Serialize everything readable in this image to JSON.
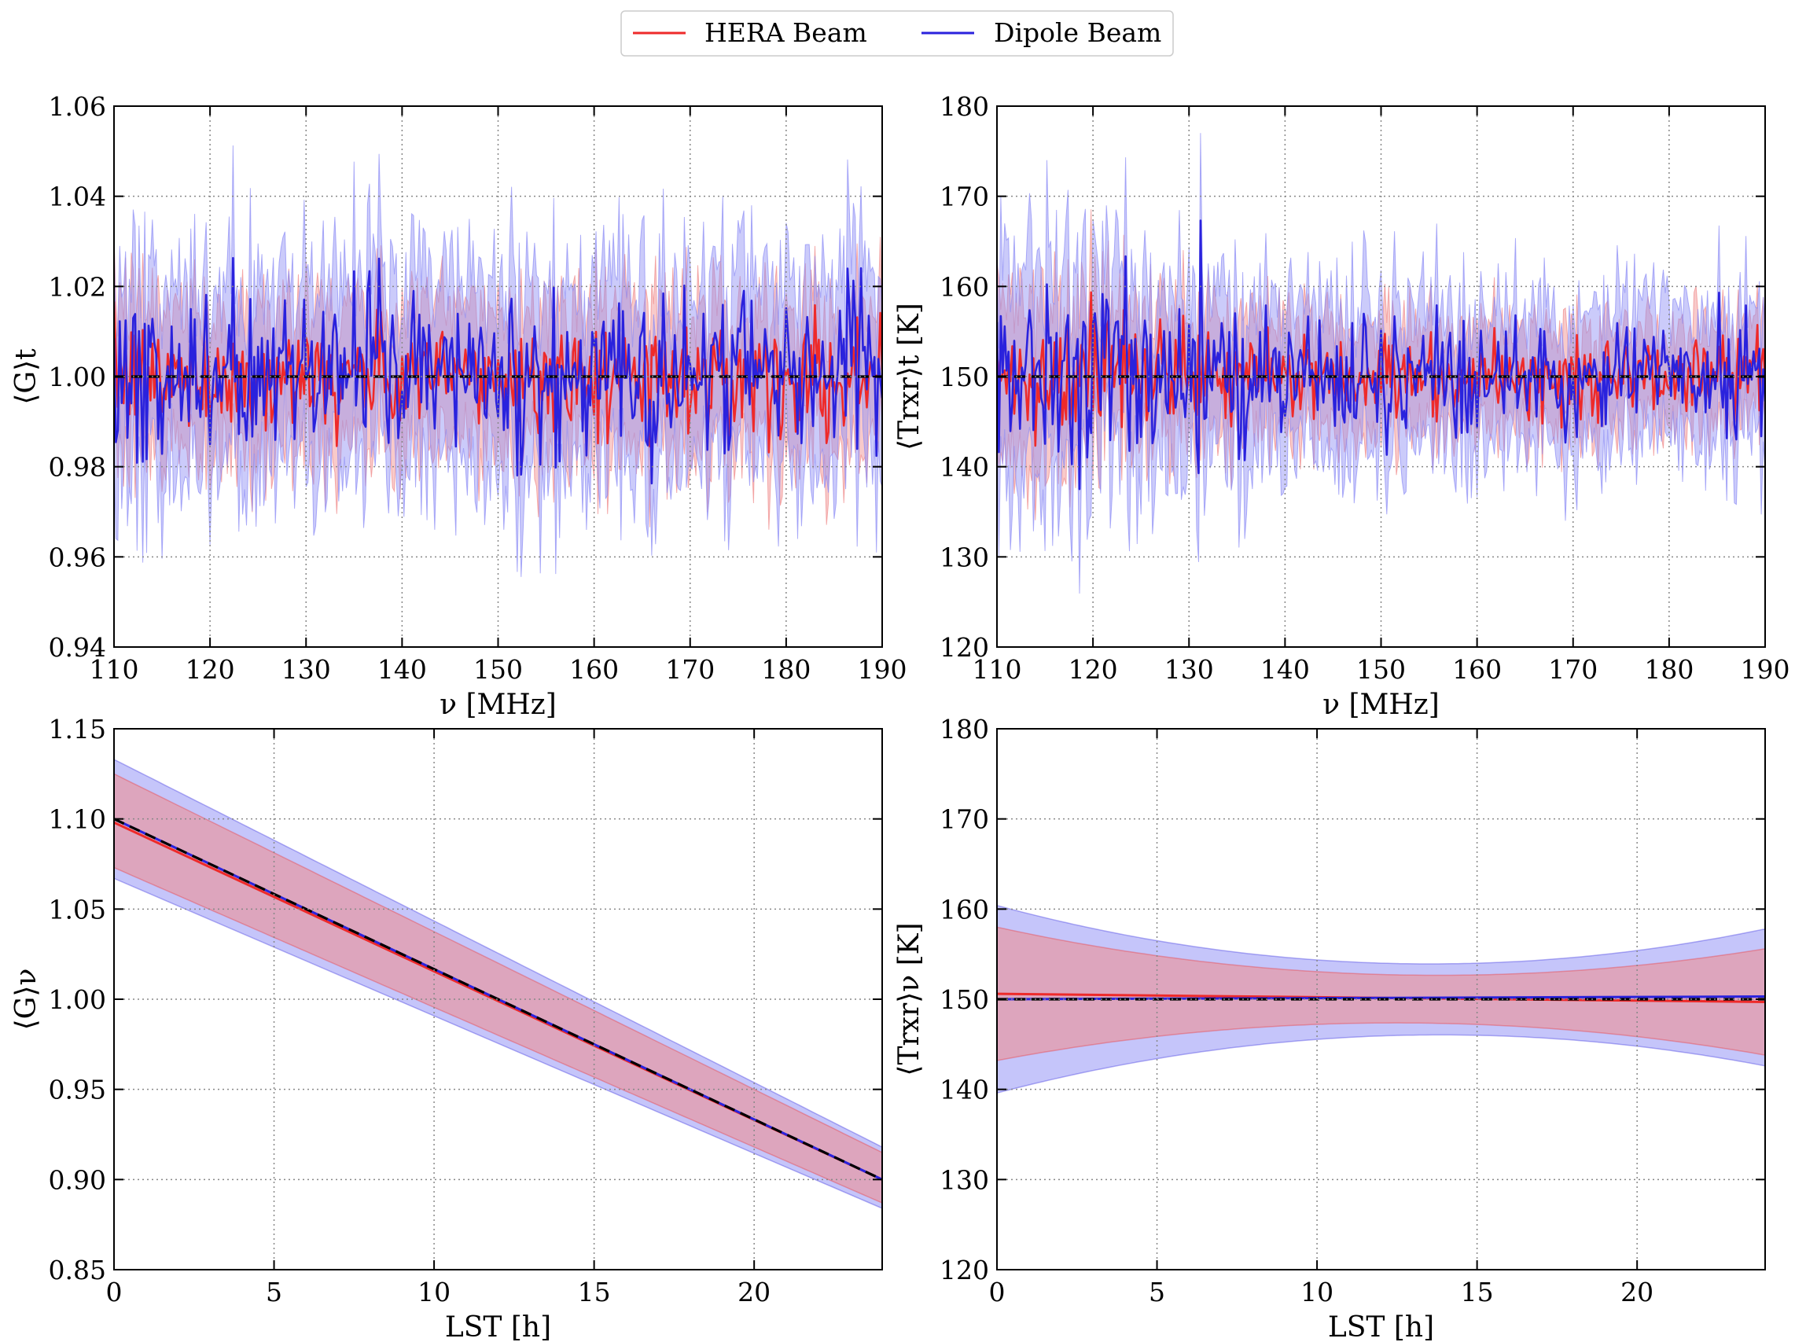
{
  "legend": {
    "entries": [
      {
        "name": "HERA Beam",
        "color": "#ee2a2a"
      },
      {
        "name": "Dipole Beam",
        "color": "#2a22dd"
      }
    ]
  },
  "colors": {
    "hera": "#ee2a2a",
    "dipole": "#2a22dd",
    "hera_band": "#f08a8a",
    "dipole_band": "#8c8cf5",
    "truth": "#000000"
  },
  "chart_data": [
    {
      "id": "gain_vs_freq",
      "type": "line",
      "xlabel": "ν [MHz]",
      "ylabel": "⟨G⟩t",
      "xlim": [
        110,
        190
      ],
      "ylim": [
        0.94,
        1.06
      ],
      "xticks": [
        110,
        120,
        130,
        140,
        150,
        160,
        170,
        180,
        190
      ],
      "xtick_labels": [
        "110",
        "120",
        "130",
        "140",
        "150",
        "160",
        "170",
        "180",
        "190"
      ],
      "yticks": [
        0.94,
        0.96,
        0.98,
        1.0,
        1.02,
        1.04,
        1.06
      ],
      "ytick_labels": [
        "0.94",
        "0.96",
        "0.98",
        "1.00",
        "1.02",
        "1.04",
        "1.06"
      ],
      "grid": true,
      "truth": 1.0,
      "series": [
        {
          "name": "HERA Beam",
          "mean": 1.0,
          "noise_amplitude": 0.006,
          "band_halfwidth": 0.015
        },
        {
          "name": "Dipole Beam",
          "mean": 1.0,
          "noise_amplitude": 0.009,
          "band_halfwidth": 0.02
        }
      ]
    },
    {
      "id": "trxr_vs_freq",
      "type": "line",
      "xlabel": "ν [MHz]",
      "ylabel": "⟨Trxr⟩t [K]",
      "xlim": [
        110,
        190
      ],
      "ylim": [
        120,
        180
      ],
      "xticks": [
        110,
        120,
        130,
        140,
        150,
        160,
        170,
        180,
        190
      ],
      "xtick_labels": [
        "110",
        "120",
        "130",
        "140",
        "150",
        "160",
        "170",
        "180",
        "190"
      ],
      "yticks": [
        120,
        130,
        140,
        150,
        160,
        170,
        180
      ],
      "ytick_labels": [
        "120",
        "130",
        "140",
        "150",
        "160",
        "170",
        "180"
      ],
      "grid": true,
      "truth": 150,
      "series": [
        {
          "name": "HERA Beam",
          "mean": 150,
          "noise_amplitude": 2.2,
          "band_halfwidth": 5
        },
        {
          "name": "Dipole Beam",
          "mean": 150,
          "noise_amplitude": 3.2,
          "band_halfwidth": 7
        }
      ]
    },
    {
      "id": "gain_vs_lst",
      "type": "line",
      "xlabel": "LST [h]",
      "ylabel": "⟨G⟩ν",
      "xlim": [
        0,
        24
      ],
      "ylim": [
        0.85,
        1.15
      ],
      "xticks": [
        0,
        5,
        10,
        15,
        20
      ],
      "xtick_labels": [
        "0",
        "5",
        "10",
        "15",
        "20"
      ],
      "yticks": [
        0.85,
        0.9,
        0.95,
        1.0,
        1.05,
        1.1,
        1.15
      ],
      "ytick_labels": [
        "0.85",
        "0.90",
        "0.95",
        "1.00",
        "1.05",
        "1.10",
        "1.15"
      ],
      "grid": true,
      "truth": {
        "x": [
          0,
          24
        ],
        "y": [
          1.1,
          0.9
        ]
      },
      "series": [
        {
          "name": "HERA Beam",
          "x": [
            0,
            24
          ],
          "y": [
            1.098,
            0.9
          ],
          "band_upper": [
            1.125,
            0.915
          ],
          "band_lower": [
            1.073,
            0.887
          ]
        },
        {
          "name": "Dipole Beam",
          "x": [
            0,
            24
          ],
          "y": [
            1.1,
            0.9
          ],
          "band_upper": [
            1.133,
            0.918
          ],
          "band_lower": [
            1.067,
            0.884
          ]
        }
      ]
    },
    {
      "id": "trxr_vs_lst",
      "type": "line",
      "xlabel": "LST [h]",
      "ylabel": "⟨Trxr⟩ν [K]",
      "xlim": [
        0,
        24
      ],
      "ylim": [
        120,
        180
      ],
      "xticks": [
        0,
        5,
        10,
        15,
        20
      ],
      "xtick_labels": [
        "0",
        "5",
        "10",
        "15",
        "20"
      ],
      "yticks": [
        120,
        130,
        140,
        150,
        160,
        170,
        180
      ],
      "ytick_labels": [
        "120",
        "130",
        "140",
        "150",
        "160",
        "170",
        "180"
      ],
      "grid": true,
      "truth": 150,
      "series": [
        {
          "name": "HERA Beam",
          "x": [
            0,
            24
          ],
          "y": [
            150.6,
            149.7
          ],
          "band_upper": [
            158,
            155.6
          ],
          "band_lower": [
            143.2,
            143.8
          ],
          "band_min_x": 15,
          "band_min_upper": 152.7,
          "band_min_lower": 147.2
        },
        {
          "name": "Dipole Beam",
          "x": [
            0,
            24
          ],
          "y": [
            150,
            150.3
          ],
          "band_upper": [
            160.4,
            157.8
          ],
          "band_lower": [
            139.6,
            142.6
          ],
          "band_min_x": 15,
          "band_min_upper": 154,
          "band_min_lower": 146
        }
      ]
    }
  ]
}
